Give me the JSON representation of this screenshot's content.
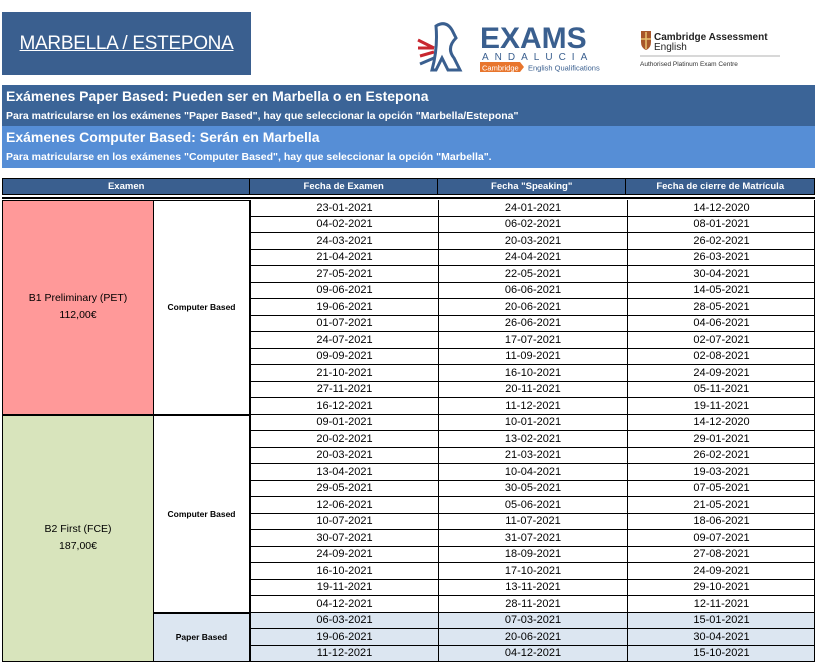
{
  "title": "MARBELLA / ESTEPONA",
  "logos": {
    "exams": "EXAMS",
    "exams_sub": "ANDALUCIA",
    "exams_badge": "Cambridge",
    "exams_tag": "English Qualifications",
    "cambridge": "Cambridge Assessment",
    "cambridge_2": "English",
    "cambridge_sub": "Authorised Platinum Exam Centre"
  },
  "colors": {
    "dark_blue": "#3A5F8F",
    "light_blue": "#568ED6",
    "b1": "#FF9999",
    "b2": "#D8E4BC",
    "paper": "#DCE6F1"
  },
  "notice": {
    "paper_heading": "Exámenes Paper Based: Pueden ser en Marbella o en Estepona",
    "paper_text": "Para matricularse en los exámenes \"Paper Based\", hay que seleccionar la opción  \"Marbella/Estepona\"",
    "computer_heading": "Exámenes Computer Based: Serán en Marbella",
    "computer_text": "Para matricularse en los exámenes \"Computer Based\", hay que seleccionar la opción  \"Marbella\"."
  },
  "table": {
    "headers": [
      "Examen",
      "Fecha de Examen",
      "Fecha \"Speaking\"",
      "Fecha de cierre de Matrícula"
    ],
    "exams": [
      {
        "name": "B1 Preliminary (PET)",
        "price": "112,00€",
        "groups": [
          {
            "type": "Computer Based",
            "rows": [
              [
                "23-01-2021",
                "24-01-2021",
                "14-12-2020"
              ],
              [
                "04-02-2021",
                "06-02-2021",
                "08-01-2021"
              ],
              [
                "24-03-2021",
                "20-03-2021",
                "26-02-2021"
              ],
              [
                "21-04-2021",
                "24-04-2021",
                "26-03-2021"
              ],
              [
                "27-05-2021",
                "22-05-2021",
                "30-04-2021"
              ],
              [
                "09-06-2021",
                "06-06-2021",
                "14-05-2021"
              ],
              [
                "19-06-2021",
                "20-06-2021",
                "28-05-2021"
              ],
              [
                "01-07-2021",
                "26-06-2021",
                "04-06-2021"
              ],
              [
                "24-07-2021",
                "17-07-2021",
                "02-07-2021"
              ],
              [
                "09-09-2021",
                "11-09-2021",
                "02-08-2021"
              ],
              [
                "21-10-2021",
                "16-10-2021",
                "24-09-2021"
              ],
              [
                "27-11-2021",
                "20-11-2021",
                "05-11-2021"
              ],
              [
                "16-12-2021",
                "11-12-2021",
                "19-11-2021"
              ]
            ]
          }
        ]
      },
      {
        "name": "B2 First (FCE)",
        "price": "187,00€",
        "groups": [
          {
            "type": "Computer Based",
            "rows": [
              [
                "09-01-2021",
                "10-01-2021",
                "14-12-2020"
              ],
              [
                "20-02-2021",
                "13-02-2021",
                "29-01-2021"
              ],
              [
                "20-03-2021",
                "21-03-2021",
                "26-02-2021"
              ],
              [
                "13-04-2021",
                "10-04-2021",
                "19-03-2021"
              ],
              [
                "29-05-2021",
                "30-05-2021",
                "07-05-2021"
              ],
              [
                "12-06-2021",
                "05-06-2021",
                "21-05-2021"
              ],
              [
                "10-07-2021",
                "11-07-2021",
                "18-06-2021"
              ],
              [
                "30-07-2021",
                "31-07-2021",
                "09-07-2021"
              ],
              [
                "24-09-2021",
                "18-09-2021",
                "27-08-2021"
              ],
              [
                "16-10-2021",
                "17-10-2021",
                "24-09-2021"
              ],
              [
                "19-11-2021",
                "13-11-2021",
                "29-10-2021"
              ],
              [
                "04-12-2021",
                "28-11-2021",
                "12-11-2021"
              ]
            ]
          },
          {
            "type": "Paper Based",
            "rows": [
              [
                "06-03-2021",
                "07-03-2021",
                "15-01-2021"
              ],
              [
                "19-06-2021",
                "20-06-2021",
                "30-04-2021"
              ],
              [
                "11-12-2021",
                "04-12-2021",
                "15-10-2021"
              ]
            ]
          }
        ]
      }
    ]
  }
}
